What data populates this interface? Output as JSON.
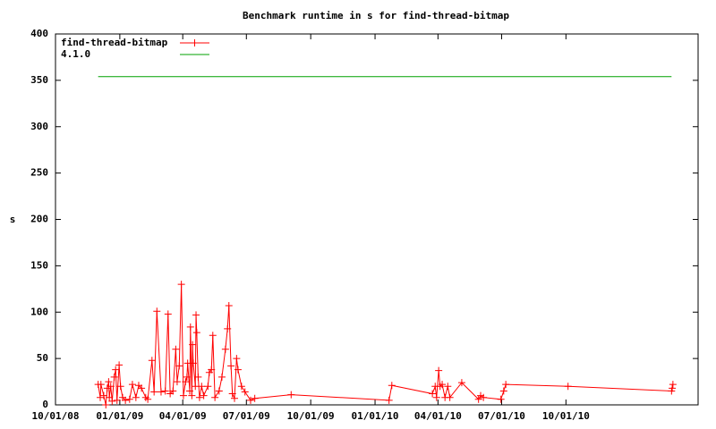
{
  "chart_data": {
    "type": "line",
    "title": "Benchmark runtime in s for find-thread-bitmap",
    "y_label": "s",
    "xlim": [
      "2008-10-01",
      "2011-04-08"
    ],
    "xticks": [
      {
        "value": "2008-10-01",
        "label": "10/01/08"
      },
      {
        "value": "2009-01-01",
        "label": "01/01/09"
      },
      {
        "value": "2009-04-01",
        "label": "04/01/09"
      },
      {
        "value": "2009-07-01",
        "label": "07/01/09"
      },
      {
        "value": "2009-10-01",
        "label": "10/01/09"
      },
      {
        "value": "2010-01-01",
        "label": "01/01/10"
      },
      {
        "value": "2010-04-01",
        "label": "04/01/10"
      },
      {
        "value": "2010-07-01",
        "label": "07/01/10"
      },
      {
        "value": "2010-10-01",
        "label": "10/01/10"
      }
    ],
    "ylim": [
      0,
      400
    ],
    "yticks": [
      0,
      50,
      100,
      150,
      200,
      250,
      300,
      350,
      400
    ],
    "legend": "top-left",
    "series": [
      {
        "name": "find-thread-bitmap",
        "color": "#ff0000",
        "marker": "plus",
        "x": [
          "2008-12-01",
          "2008-12-04",
          "2008-12-05",
          "2008-12-09",
          "2008-12-12",
          "2008-12-14",
          "2008-12-16",
          "2008-12-17",
          "2008-12-19",
          "2008-12-21",
          "2008-12-24",
          "2008-12-26",
          "2008-12-28",
          "2008-12-31",
          "2009-01-02",
          "2009-01-05",
          "2009-01-09",
          "2009-01-15",
          "2009-01-19",
          "2009-01-24",
          "2009-01-28",
          "2009-02-01",
          "2009-02-07",
          "2009-02-10",
          "2009-02-16",
          "2009-02-19",
          "2009-02-23",
          "2009-03-01",
          "2009-03-07",
          "2009-03-11",
          "2009-03-14",
          "2009-03-18",
          "2009-03-22",
          "2009-03-24",
          "2009-03-27",
          "2009-03-30",
          "2009-04-02",
          "2009-04-05",
          "2009-04-07",
          "2009-04-08",
          "2009-04-11",
          "2009-04-12",
          "2009-04-14",
          "2009-04-15",
          "2009-04-16",
          "2009-04-19",
          "2009-04-20",
          "2009-04-21",
          "2009-04-23",
          "2009-04-25",
          "2009-04-28",
          "2009-05-01",
          "2009-05-07",
          "2009-05-09",
          "2009-05-12",
          "2009-05-14",
          "2009-05-17",
          "2009-05-23",
          "2009-05-27",
          "2009-06-01",
          "2009-06-04",
          "2009-06-06",
          "2009-06-09",
          "2009-06-11",
          "2009-06-14",
          "2009-06-17",
          "2009-06-19",
          "2009-06-24",
          "2009-06-29",
          "2009-07-07",
          "2009-07-13",
          "2009-09-03",
          "2010-01-21",
          "2010-01-25",
          "2010-03-24",
          "2010-03-28",
          "2010-03-30",
          "2010-04-02",
          "2010-04-04",
          "2010-04-07",
          "2010-04-11",
          "2010-04-15",
          "2010-04-18",
          "2010-05-05",
          "2010-05-29",
          "2010-06-01",
          "2010-06-05",
          "2010-06-30",
          "2010-07-04",
          "2010-07-07",
          "2010-10-04",
          "2011-03-01",
          "2011-03-02",
          "2011-03-03"
        ],
        "values": [
          22,
          8,
          22,
          10,
          0,
          18,
          25,
          8,
          20,
          4,
          30,
          38,
          5,
          43,
          20,
          8,
          5,
          6,
          22,
          8,
          21,
          18,
          8,
          6,
          48,
          14,
          101,
          14,
          15,
          98,
          12,
          15,
          60,
          25,
          42,
          130,
          10,
          25,
          30,
          45,
          15,
          84,
          10,
          65,
          45,
          20,
          97,
          78,
          30,
          8,
          20,
          10,
          20,
          35,
          38,
          75,
          8,
          15,
          30,
          60,
          82,
          107,
          42,
          12,
          7,
          50,
          38,
          20,
          14,
          5,
          7,
          11,
          5,
          21,
          12,
          20,
          8,
          37,
          20,
          22,
          8,
          20,
          8,
          24,
          6,
          10,
          8,
          6,
          15,
          22,
          20,
          15,
          18,
          22
        ]
      },
      {
        "name": "4.1.0",
        "color": "#00a000",
        "marker": "none",
        "x": [
          "2008-12-01",
          "2011-03-01"
        ],
        "values": [
          354,
          354
        ]
      }
    ]
  }
}
